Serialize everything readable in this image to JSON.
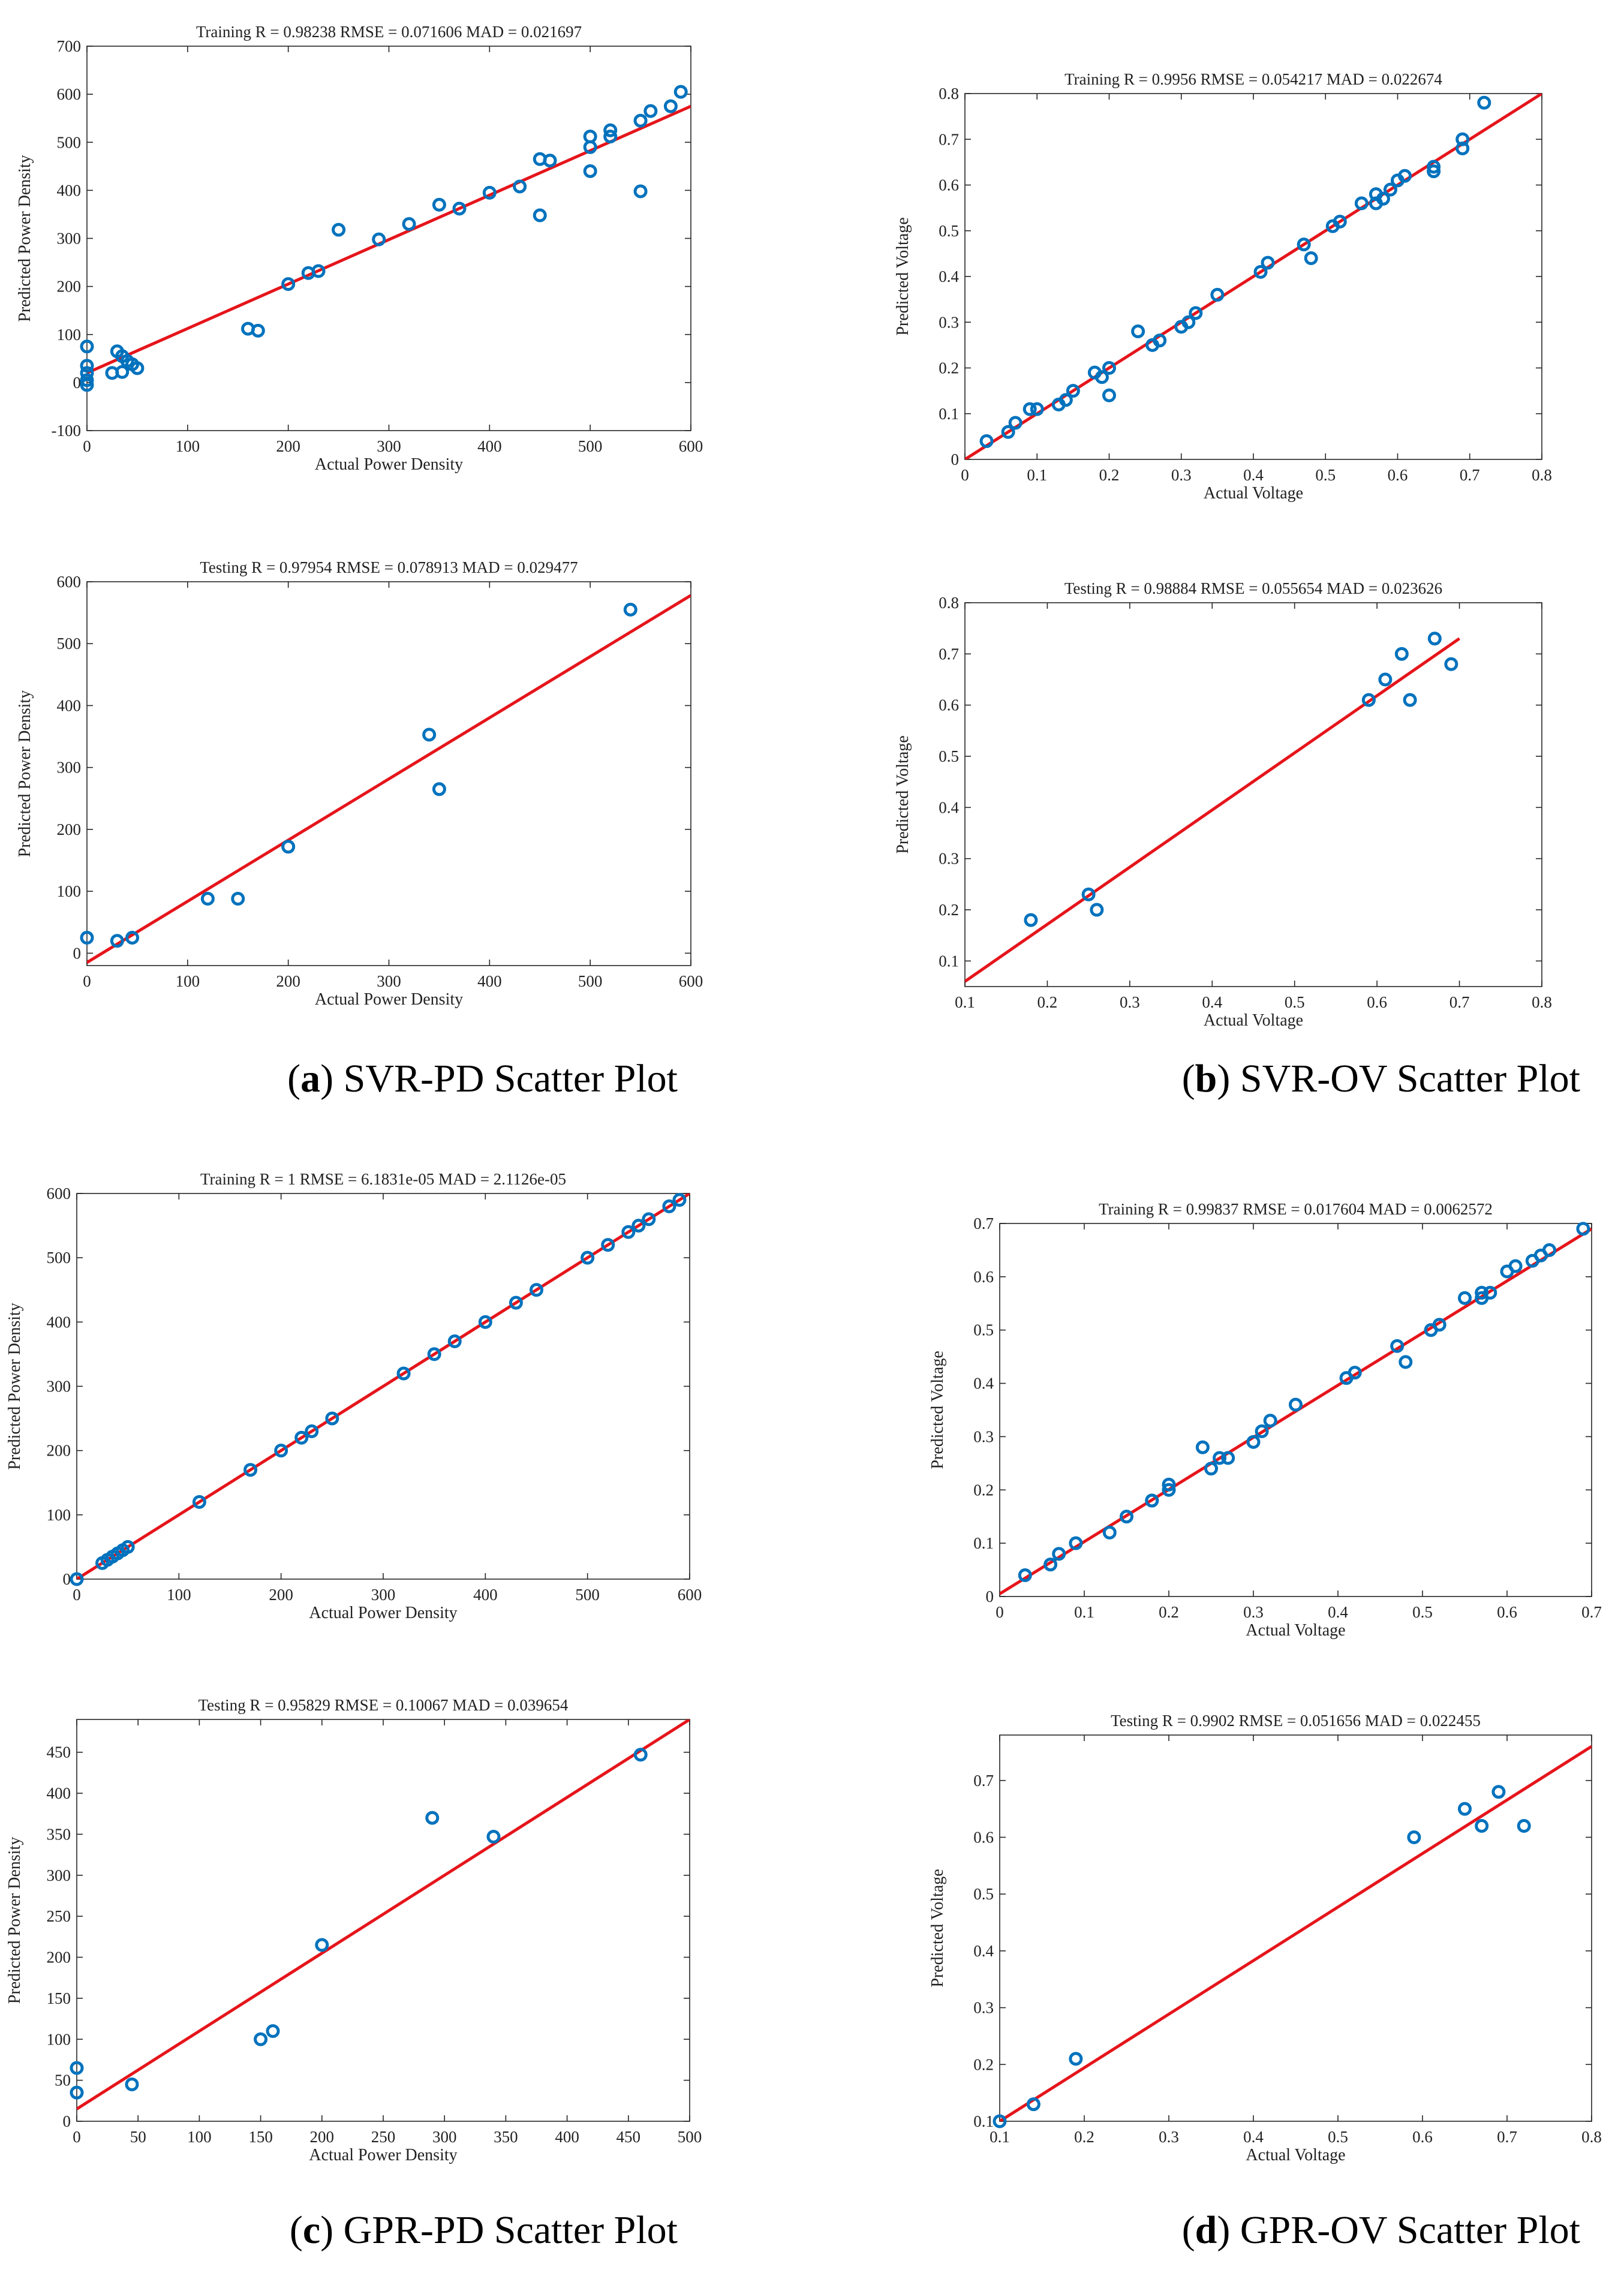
{
  "chart_data": [
    {
      "type": "scatter",
      "title": "Training R = 0.98238 RMSE = 0.071606 MAD = 0.021697",
      "xlabel": "Actual Power Density",
      "ylabel": "Predicted Power Density",
      "xlim": [
        0,
        600
      ],
      "ylim": [
        -100,
        700
      ],
      "xticks": [
        0,
        100,
        200,
        300,
        400,
        500,
        600
      ],
      "yticks": [
        -100,
        0,
        100,
        200,
        300,
        400,
        500,
        600,
        700
      ],
      "points": [
        [
          0,
          75
        ],
        [
          0,
          35
        ],
        [
          0,
          20
        ],
        [
          0,
          5
        ],
        [
          0,
          -5
        ],
        [
          25,
          20
        ],
        [
          30,
          65
        ],
        [
          35,
          22
        ],
        [
          35,
          55
        ],
        [
          40,
          45
        ],
        [
          45,
          38
        ],
        [
          50,
          30
        ],
        [
          160,
          112
        ],
        [
          170,
          108
        ],
        [
          200,
          205
        ],
        [
          220,
          228
        ],
        [
          230,
          232
        ],
        [
          250,
          318
        ],
        [
          290,
          298
        ],
        [
          320,
          330
        ],
        [
          350,
          370
        ],
        [
          370,
          362
        ],
        [
          400,
          395
        ],
        [
          430,
          408
        ],
        [
          450,
          465
        ],
        [
          450,
          348
        ],
        [
          460,
          462
        ],
        [
          500,
          512
        ],
        [
          500,
          490
        ],
        [
          500,
          440
        ],
        [
          520,
          525
        ],
        [
          520,
          512
        ],
        [
          550,
          545
        ],
        [
          550,
          398
        ],
        [
          560,
          565
        ],
        [
          580,
          575
        ],
        [
          590,
          605
        ]
      ],
      "fit_line": [
        [
          0,
          20
        ],
        [
          600,
          575
        ]
      ],
      "series": [
        {
          "name": "Data",
          "color": "#0072BD"
        },
        {
          "name": "Fit",
          "color": "#E5151B"
        }
      ]
    },
    {
      "type": "scatter",
      "title": "Training R = 0.9956 RMSE = 0.054217 MAD = 0.022674",
      "xlabel": "Actual Voltage",
      "ylabel": "Predicted Voltage",
      "xlim": [
        0,
        0.8
      ],
      "ylim": [
        0,
        0.8
      ],
      "xticks": [
        0,
        0.1,
        0.2,
        0.3,
        0.4,
        0.5,
        0.6,
        0.7,
        0.8
      ],
      "yticks": [
        0,
        0.1,
        0.2,
        0.3,
        0.4,
        0.5,
        0.6,
        0.7,
        0.8
      ],
      "points": [
        [
          0.03,
          0.04
        ],
        [
          0.06,
          0.06
        ],
        [
          0.07,
          0.08
        ],
        [
          0.09,
          0.11
        ],
        [
          0.1,
          0.11
        ],
        [
          0.13,
          0.12
        ],
        [
          0.14,
          0.13
        ],
        [
          0.15,
          0.15
        ],
        [
          0.18,
          0.19
        ],
        [
          0.19,
          0.18
        ],
        [
          0.2,
          0.2
        ],
        [
          0.2,
          0.14
        ],
        [
          0.24,
          0.28
        ],
        [
          0.26,
          0.25
        ],
        [
          0.27,
          0.26
        ],
        [
          0.3,
          0.29
        ],
        [
          0.31,
          0.3
        ],
        [
          0.32,
          0.32
        ],
        [
          0.35,
          0.36
        ],
        [
          0.41,
          0.41
        ],
        [
          0.42,
          0.43
        ],
        [
          0.47,
          0.47
        ],
        [
          0.48,
          0.44
        ],
        [
          0.51,
          0.51
        ],
        [
          0.52,
          0.52
        ],
        [
          0.55,
          0.56
        ],
        [
          0.57,
          0.58
        ],
        [
          0.57,
          0.56
        ],
        [
          0.58,
          0.57
        ],
        [
          0.59,
          0.59
        ],
        [
          0.6,
          0.61
        ],
        [
          0.61,
          0.62
        ],
        [
          0.65,
          0.64
        ],
        [
          0.65,
          0.63
        ],
        [
          0.69,
          0.7
        ],
        [
          0.69,
          0.68
        ],
        [
          0.72,
          0.78
        ]
      ],
      "fit_line": [
        [
          0,
          0
        ],
        [
          0.8,
          0.8
        ]
      ],
      "series": [
        {
          "name": "Data",
          "color": "#0072BD"
        },
        {
          "name": "Fit",
          "color": "#E5151B"
        }
      ]
    },
    {
      "type": "scatter",
      "title": "Testing R = 0.97954 RMSE = 0.078913 MAD = 0.029477",
      "xlabel": "Actual Power Density",
      "ylabel": "Predicted Power Density",
      "xlim": [
        0,
        600
      ],
      "ylim": [
        -20,
        600
      ],
      "xticks": [
        0,
        100,
        200,
        300,
        400,
        500,
        600
      ],
      "yticks": [
        0,
        100,
        200,
        300,
        400,
        500,
        600
      ],
      "points": [
        [
          0,
          25
        ],
        [
          30,
          20
        ],
        [
          45,
          25
        ],
        [
          120,
          88
        ],
        [
          150,
          88
        ],
        [
          200,
          172
        ],
        [
          340,
          353
        ],
        [
          350,
          265
        ],
        [
          540,
          555
        ]
      ],
      "fit_line": [
        [
          0,
          -15
        ],
        [
          600,
          578
        ]
      ],
      "series": [
        {
          "name": "Data",
          "color": "#0072BD"
        },
        {
          "name": "Fit",
          "color": "#E5151B"
        }
      ]
    },
    {
      "type": "scatter",
      "title": "Testing R = 0.98884 RMSE = 0.055654 MAD = 0.023626",
      "xlabel": "Actual Voltage",
      "ylabel": "Predicted Voltage",
      "xlim": [
        0.1,
        0.8
      ],
      "ylim": [
        0.05,
        0.8
      ],
      "xticks": [
        0.1,
        0.2,
        0.3,
        0.4,
        0.5,
        0.6,
        0.7,
        0.8
      ],
      "yticks": [
        0.1,
        0.2,
        0.3,
        0.4,
        0.5,
        0.6,
        0.7,
        0.8
      ],
      "points": [
        [
          0.18,
          0.18
        ],
        [
          0.25,
          0.23
        ],
        [
          0.26,
          0.2
        ],
        [
          0.59,
          0.61
        ],
        [
          0.61,
          0.65
        ],
        [
          0.63,
          0.7
        ],
        [
          0.64,
          0.61
        ],
        [
          0.67,
          0.73
        ],
        [
          0.69,
          0.68
        ]
      ],
      "fit_line": [
        [
          0.1,
          0.06
        ],
        [
          0.7,
          0.73
        ]
      ],
      "series": [
        {
          "name": "Data",
          "color": "#0072BD"
        },
        {
          "name": "Fit",
          "color": "#E5151B"
        }
      ]
    },
    {
      "type": "scatter",
      "title": "Training R = 1 RMSE = 6.1831e-05 MAD = 2.1126e-05",
      "xlabel": "Actual Power Density",
      "ylabel": "Predicted Power Density",
      "xlim": [
        0,
        600
      ],
      "ylim": [
        0,
        600
      ],
      "xticks": [
        0,
        100,
        200,
        300,
        400,
        500,
        600
      ],
      "yticks": [
        0,
        100,
        200,
        300,
        400,
        500,
        600
      ],
      "points": [
        [
          0,
          0
        ],
        [
          25,
          25
        ],
        [
          30,
          30
        ],
        [
          35,
          35
        ],
        [
          40,
          40
        ],
        [
          45,
          45
        ],
        [
          50,
          50
        ],
        [
          120,
          120
        ],
        [
          170,
          170
        ],
        [
          200,
          200
        ],
        [
          220,
          220
        ],
        [
          230,
          230
        ],
        [
          250,
          250
        ],
        [
          320,
          320
        ],
        [
          350,
          350
        ],
        [
          370,
          370
        ],
        [
          400,
          400
        ],
        [
          430,
          430
        ],
        [
          450,
          450
        ],
        [
          500,
          500
        ],
        [
          520,
          520
        ],
        [
          540,
          540
        ],
        [
          550,
          550
        ],
        [
          560,
          560
        ],
        [
          580,
          580
        ],
        [
          590,
          590
        ]
      ],
      "fit_line": [
        [
          0,
          0
        ],
        [
          600,
          600
        ]
      ],
      "series": [
        {
          "name": "Data",
          "color": "#0072BD"
        },
        {
          "name": "Fit",
          "color": "#E5151B"
        }
      ]
    },
    {
      "type": "scatter",
      "title": "Training R = 0.99837 RMSE = 0.017604 MAD = 0.0062572",
      "xlabel": "Actual Voltage",
      "ylabel": "Predicted Voltage",
      "xlim": [
        0,
        0.7
      ],
      "ylim": [
        0,
        0.7
      ],
      "xticks": [
        0,
        0.1,
        0.2,
        0.3,
        0.4,
        0.5,
        0.6,
        0.7
      ],
      "yticks": [
        0,
        0.1,
        0.2,
        0.3,
        0.4,
        0.5,
        0.6,
        0.7
      ],
      "points": [
        [
          0.03,
          0.04
        ],
        [
          0.06,
          0.06
        ],
        [
          0.07,
          0.08
        ],
        [
          0.09,
          0.1
        ],
        [
          0.13,
          0.12
        ],
        [
          0.15,
          0.15
        ],
        [
          0.18,
          0.18
        ],
        [
          0.18,
          0.18
        ],
        [
          0.2,
          0.2
        ],
        [
          0.2,
          0.21
        ],
        [
          0.24,
          0.28
        ],
        [
          0.25,
          0.24
        ],
        [
          0.26,
          0.26
        ],
        [
          0.27,
          0.26
        ],
        [
          0.3,
          0.29
        ],
        [
          0.31,
          0.31
        ],
        [
          0.32,
          0.33
        ],
        [
          0.35,
          0.36
        ],
        [
          0.41,
          0.41
        ],
        [
          0.42,
          0.42
        ],
        [
          0.47,
          0.47
        ],
        [
          0.48,
          0.44
        ],
        [
          0.51,
          0.5
        ],
        [
          0.52,
          0.51
        ],
        [
          0.55,
          0.56
        ],
        [
          0.57,
          0.57
        ],
        [
          0.57,
          0.56
        ],
        [
          0.58,
          0.57
        ],
        [
          0.6,
          0.61
        ],
        [
          0.61,
          0.62
        ],
        [
          0.63,
          0.63
        ],
        [
          0.64,
          0.64
        ],
        [
          0.65,
          0.65
        ],
        [
          0.69,
          0.69
        ]
      ],
      "fit_line": [
        [
          0,
          0.005
        ],
        [
          0.7,
          0.69
        ]
      ],
      "series": [
        {
          "name": "Data",
          "color": "#0072BD"
        },
        {
          "name": "Fit",
          "color": "#E5151B"
        }
      ]
    },
    {
      "type": "scatter",
      "title": "Testing R = 0.95829 RMSE = 0.10067 MAD = 0.039654",
      "xlabel": "Actual Power Density",
      "ylabel": "Predicted Power Density",
      "xlim": [
        0,
        500
      ],
      "ylim": [
        0,
        490
      ],
      "xticks": [
        0,
        50,
        100,
        150,
        200,
        250,
        300,
        350,
        400,
        450,
        500
      ],
      "yticks": [
        0,
        50,
        100,
        150,
        200,
        250,
        300,
        350,
        400,
        450
      ],
      "points": [
        [
          0,
          65
        ],
        [
          0,
          35
        ],
        [
          45,
          45
        ],
        [
          150,
          100
        ],
        [
          160,
          110
        ],
        [
          200,
          215
        ],
        [
          290,
          370
        ],
        [
          340,
          347
        ],
        [
          460,
          447
        ]
      ],
      "fit_line": [
        [
          0,
          15
        ],
        [
          500,
          490
        ]
      ],
      "series": [
        {
          "name": "Data",
          "color": "#0072BD"
        },
        {
          "name": "Fit",
          "color": "#E5151B"
        }
      ]
    },
    {
      "type": "scatter",
      "title": "Testing R = 0.9902 RMSE = 0.051656 MAD = 0.022455",
      "xlabel": "Actual Voltage",
      "ylabel": "Predicted Voltage",
      "xlim": [
        0.1,
        0.8
      ],
      "ylim": [
        0.1,
        0.78
      ],
      "xticks": [
        0.1,
        0.2,
        0.3,
        0.4,
        0.5,
        0.6,
        0.7,
        0.8
      ],
      "yticks": [
        0.1,
        0.2,
        0.3,
        0.4,
        0.5,
        0.6,
        0.7
      ],
      "points": [
        [
          0.1,
          0.1
        ],
        [
          0.14,
          0.13
        ],
        [
          0.19,
          0.21
        ],
        [
          0.59,
          0.6
        ],
        [
          0.65,
          0.65
        ],
        [
          0.67,
          0.62
        ],
        [
          0.69,
          0.68
        ],
        [
          0.72,
          0.62
        ]
      ],
      "fit_line": [
        [
          0.1,
          0.1
        ],
        [
          0.8,
          0.76
        ]
      ],
      "series": [
        {
          "name": "Data",
          "color": "#0072BD"
        },
        {
          "name": "Fit",
          "color": "#E5151B"
        }
      ]
    }
  ],
  "captions": [
    {
      "letter": "a",
      "text": "SVR-PD Scatter Plot"
    },
    {
      "letter": "b",
      "text": "SVR-OV Scatter Plot"
    },
    {
      "letter": "c",
      "text": "GPR-PD Scatter Plot"
    },
    {
      "letter": "d",
      "text": "GPR-OV Scatter Plot"
    }
  ]
}
